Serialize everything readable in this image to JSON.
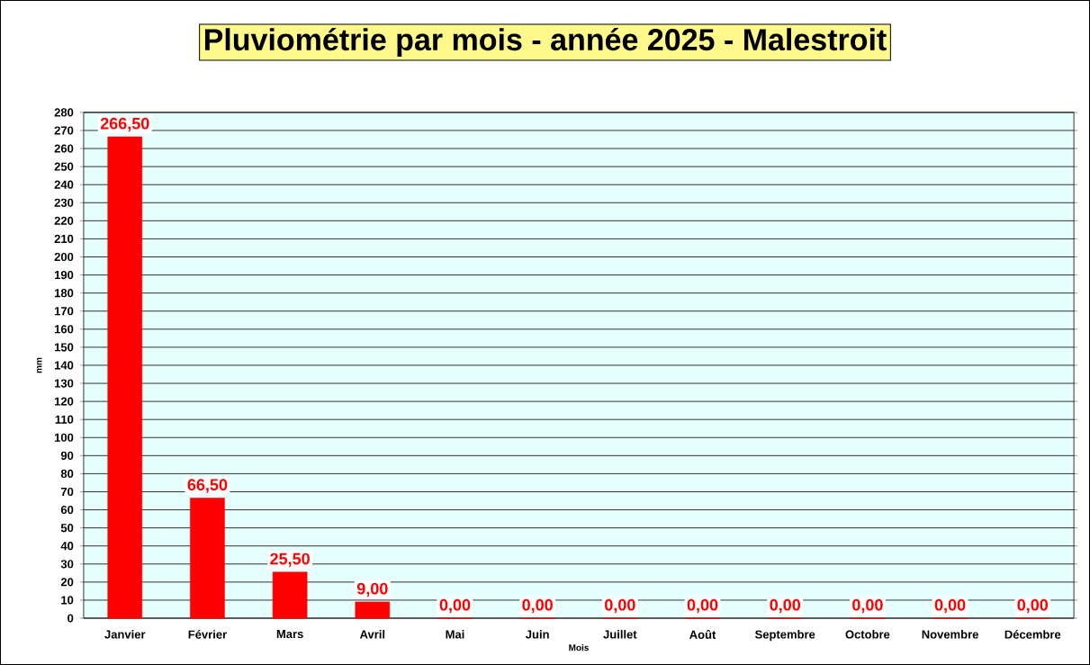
{
  "chart_data": {
    "type": "bar",
    "title": "Pluviométrie par mois - année 2025 - Malestroit",
    "xlabel": "Mois",
    "ylabel": "mm",
    "categories": [
      "Janvier",
      "Février",
      "Mars",
      "Avril",
      "Mai",
      "Juin",
      "Juillet",
      "Août",
      "Septembre",
      "Octobre",
      "Novembre",
      "Décembre"
    ],
    "values": [
      266.5,
      66.5,
      25.5,
      9,
      0,
      0,
      0,
      0,
      0,
      0,
      0,
      0
    ],
    "value_labels": [
      "266,50",
      "66,50",
      "25,50",
      "9,00",
      "0,00",
      "0,00",
      "0,00",
      "0,00",
      "0,00",
      "0,00",
      "0,00",
      "0,00"
    ],
    "color": "#ff0000",
    "ylim": [
      0,
      280
    ],
    "yticks": [
      0,
      10,
      20,
      30,
      40,
      50,
      60,
      70,
      80,
      90,
      100,
      110,
      120,
      130,
      140,
      150,
      160,
      170,
      180,
      190,
      200,
      210,
      220,
      230,
      240,
      250,
      260,
      270,
      280
    ],
    "grid": "y"
  }
}
